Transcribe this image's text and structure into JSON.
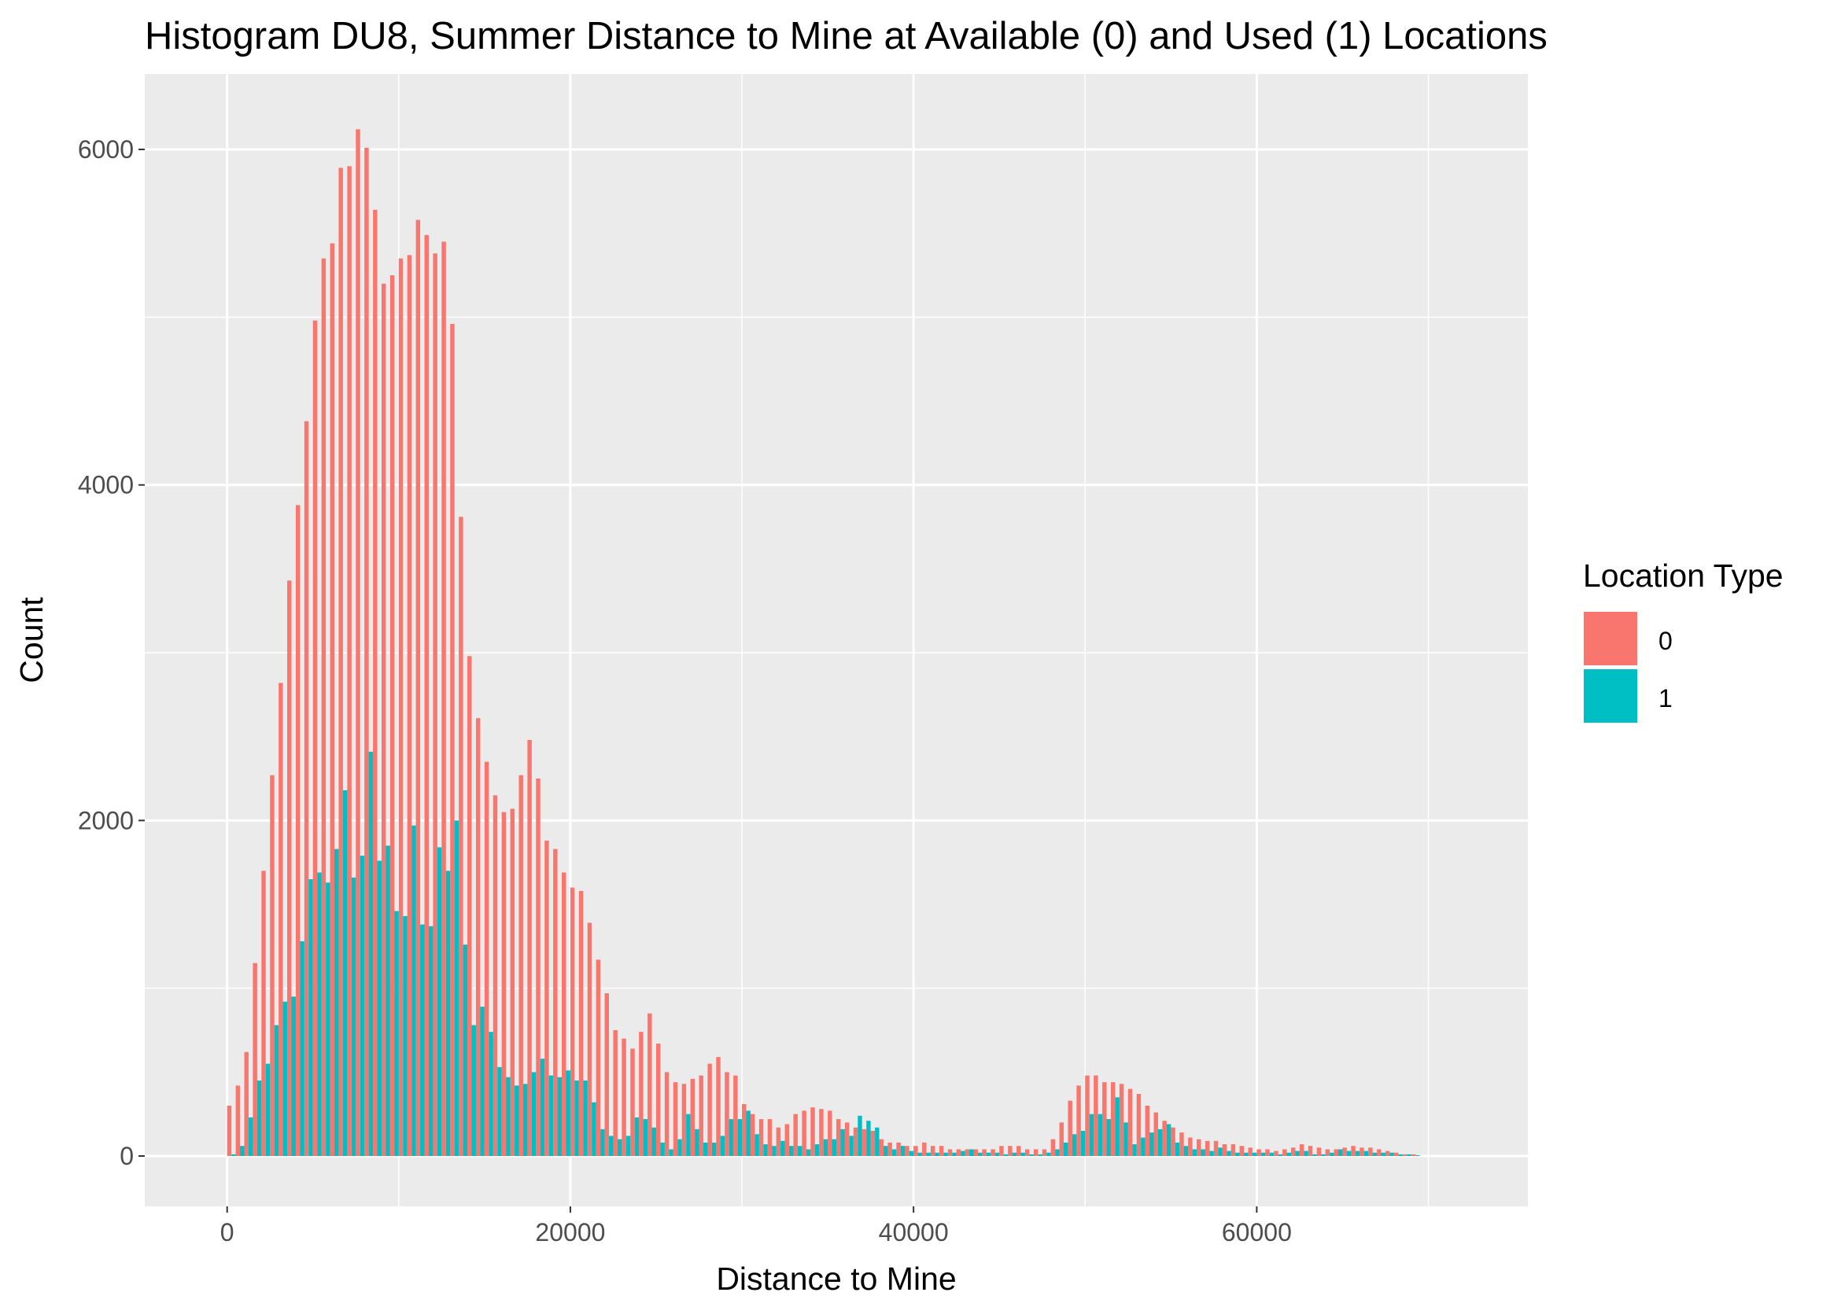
{
  "chart_data": {
    "type": "bar",
    "title": "Histogram DU8, Summer Distance to Mine at Available (0) and Used (1) Locations",
    "xlabel": "Distance to Mine",
    "ylabel": "Count",
    "xlim": [
      -4800,
      75800
    ],
    "ylim": [
      -300,
      6450
    ],
    "x_ticks": [
      0,
      20000,
      40000,
      60000
    ],
    "y_ticks": [
      0,
      2000,
      4000,
      6000
    ],
    "x_tick_labels": [
      "0",
      "20000",
      "40000",
      "60000"
    ],
    "y_tick_labels": [
      "0",
      "2000",
      "4000",
      "6000"
    ],
    "grid": true,
    "bin_width": 500,
    "x_start": 0,
    "legend": {
      "title": "Location Type",
      "position": "right",
      "entries": [
        "0",
        "1"
      ]
    },
    "series": [
      {
        "name": "0",
        "color": "#F8766D",
        "values": [
          300,
          420,
          620,
          1150,
          1700,
          2270,
          2820,
          3430,
          3880,
          4380,
          4980,
          5350,
          5440,
          5890,
          5900,
          6120,
          6010,
          5640,
          5200,
          5250,
          5350,
          5370,
          5580,
          5490,
          5380,
          5450,
          4960,
          3810,
          2980,
          2610,
          2350,
          2150,
          2050,
          2070,
          2270,
          2480,
          2250,
          1880,
          1830,
          1690,
          1600,
          1580,
          1390,
          1170,
          970,
          750,
          700,
          640,
          740,
          850,
          670,
          500,
          440,
          430,
          460,
          480,
          550,
          590,
          500,
          480,
          310,
          250,
          220,
          220,
          170,
          190,
          250,
          270,
          290,
          280,
          270,
          220,
          200,
          170,
          160,
          150,
          100,
          80,
          80,
          60,
          60,
          80,
          60,
          60,
          40,
          40,
          40,
          40,
          40,
          40,
          60,
          60,
          60,
          40,
          40,
          40,
          100,
          200,
          330,
          420,
          480,
          480,
          440,
          440,
          430,
          400,
          370,
          300,
          260,
          210,
          170,
          140,
          110,
          100,
          90,
          90,
          70,
          70,
          60,
          50,
          40,
          40,
          30,
          40,
          50,
          70,
          60,
          50,
          40,
          40,
          50,
          60,
          50,
          50,
          40,
          30,
          20,
          10,
          10
        ]
      },
      {
        "name": "1",
        "color": "#00BFC4",
        "values": [
          10,
          60,
          230,
          450,
          550,
          780,
          920,
          950,
          1280,
          1650,
          1690,
          1630,
          1830,
          2180,
          1660,
          1790,
          2410,
          1760,
          1850,
          1460,
          1430,
          1970,
          1380,
          1370,
          1840,
          1700,
          2000,
          1260,
          780,
          890,
          740,
          530,
          470,
          420,
          430,
          500,
          580,
          480,
          470,
          510,
          450,
          450,
          320,
          160,
          120,
          100,
          120,
          230,
          220,
          170,
          80,
          40,
          100,
          250,
          160,
          80,
          80,
          120,
          220,
          220,
          270,
          130,
          70,
          60,
          90,
          60,
          60,
          40,
          70,
          100,
          100,
          160,
          120,
          240,
          210,
          170,
          60,
          40,
          60,
          30,
          20,
          20,
          20,
          20,
          20,
          30,
          40,
          20,
          20,
          20,
          10,
          20,
          20,
          10,
          10,
          20,
          40,
          80,
          130,
          150,
          250,
          250,
          220,
          350,
          200,
          70,
          110,
          140,
          160,
          190,
          80,
          60,
          40,
          40,
          30,
          50,
          30,
          20,
          20,
          20,
          20,
          20,
          10,
          20,
          30,
          30,
          10,
          10,
          20,
          40,
          30,
          30,
          30,
          20,
          20,
          20,
          10,
          10,
          5
        ]
      }
    ]
  }
}
